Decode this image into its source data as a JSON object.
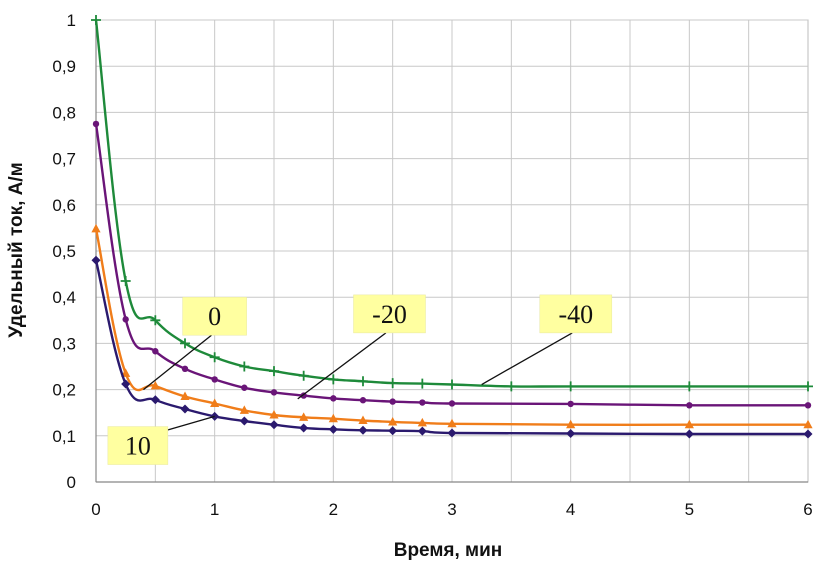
{
  "chart_data": {
    "type": "line",
    "xlabel": "Время, мин",
    "ylabel": "Удельный ток, А/м",
    "xlim": [
      0,
      6
    ],
    "ylim": [
      0,
      1
    ],
    "x_ticks": [
      "0",
      "1",
      "2",
      "3",
      "4",
      "5",
      "6"
    ],
    "y_ticks": [
      "0",
      "0,1",
      "0,2",
      "0,3",
      "0,4",
      "0,5",
      "0,6",
      "0,7",
      "0,8",
      "0,9",
      "1"
    ],
    "grid": true,
    "series": [
      {
        "name": "-40",
        "color": "#1e8a3a",
        "marker": "plus",
        "points": [
          [
            0,
            1.0
          ],
          [
            0.25,
            0.435
          ],
          [
            0.5,
            0.35
          ],
          [
            0.75,
            0.3
          ],
          [
            1,
            0.27
          ],
          [
            1.25,
            0.25
          ],
          [
            1.5,
            0.24
          ],
          [
            1.75,
            0.23
          ],
          [
            2,
            0.222
          ],
          [
            2.25,
            0.218
          ],
          [
            2.5,
            0.214
          ],
          [
            2.75,
            0.213
          ],
          [
            3,
            0.211
          ],
          [
            3.5,
            0.207
          ],
          [
            4,
            0.207
          ],
          [
            5,
            0.207
          ],
          [
            6,
            0.207
          ]
        ]
      },
      {
        "name": "-20",
        "color": "#6a1578",
        "marker": "circle",
        "points": [
          [
            0,
            0.775
          ],
          [
            0.25,
            0.352
          ],
          [
            0.5,
            0.283
          ],
          [
            0.75,
            0.245
          ],
          [
            1,
            0.222
          ],
          [
            1.25,
            0.204
          ],
          [
            1.5,
            0.194
          ],
          [
            1.75,
            0.187
          ],
          [
            2,
            0.181
          ],
          [
            2.25,
            0.177
          ],
          [
            2.5,
            0.174
          ],
          [
            2.75,
            0.172
          ],
          [
            3,
            0.17
          ],
          [
            4,
            0.169
          ],
          [
            5,
            0.166
          ],
          [
            6,
            0.166
          ]
        ]
      },
      {
        "name": "0",
        "color": "#f07d1a",
        "marker": "triangle",
        "points": [
          [
            0,
            0.548
          ],
          [
            0.25,
            0.235
          ],
          [
            0.5,
            0.208
          ],
          [
            0.75,
            0.185
          ],
          [
            1,
            0.17
          ],
          [
            1.25,
            0.155
          ],
          [
            1.5,
            0.145
          ],
          [
            1.75,
            0.14
          ],
          [
            2,
            0.137
          ],
          [
            2.25,
            0.133
          ],
          [
            2.5,
            0.13
          ],
          [
            2.75,
            0.128
          ],
          [
            3,
            0.126
          ],
          [
            4,
            0.124
          ],
          [
            5,
            0.124
          ],
          [
            6,
            0.124
          ]
        ]
      },
      {
        "name": "10",
        "color": "#2b1a6e",
        "marker": "diamond",
        "points": [
          [
            0,
            0.48
          ],
          [
            0.25,
            0.212
          ],
          [
            0.5,
            0.178
          ],
          [
            0.75,
            0.158
          ],
          [
            1,
            0.142
          ],
          [
            1.25,
            0.132
          ],
          [
            1.5,
            0.124
          ],
          [
            1.75,
            0.117
          ],
          [
            2,
            0.114
          ],
          [
            2.25,
            0.112
          ],
          [
            2.5,
            0.111
          ],
          [
            2.75,
            0.11
          ],
          [
            3,
            0.106
          ],
          [
            4,
            0.105
          ],
          [
            5,
            0.104
          ],
          [
            6,
            0.104
          ]
        ]
      }
    ],
    "annotations": [
      {
        "text": "0",
        "series": "0",
        "box": [
          1.55,
          3.0,
          0.4
        ],
        "point": [
          0.4,
          0.2
        ]
      },
      {
        "text": "-20",
        "series": "-20",
        "box": [
          2.35,
          3.0,
          0.36
        ],
        "point": [
          1.7,
          0.18
        ]
      },
      {
        "text": "-40",
        "series": "-40",
        "box": [
          3.9,
          5.1,
          0.36
        ],
        "point": [
          3.25,
          0.211
        ]
      },
      {
        "text": "10",
        "series": "10",
        "box": [
          0.1,
          0.6,
          0.1
        ],
        "point": [
          1.0,
          0.142
        ]
      }
    ]
  }
}
